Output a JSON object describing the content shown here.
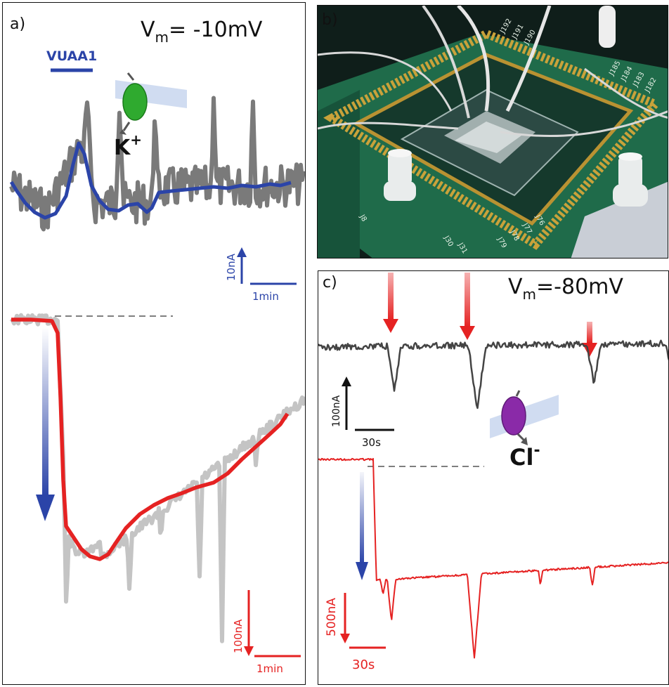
{
  "panel_a": {
    "label": "a)",
    "voltage_V": "V",
    "voltage_sub": "m",
    "voltage_value": "= -10mV",
    "drug_label": "VUAA1",
    "ion_symbol": "K",
    "ion_charge": "+",
    "scale_top": {
      "vertical": "10nA",
      "horizontal": "1min"
    },
    "scale_bottom": {
      "vertical": "100nA",
      "horizontal": "1min"
    }
  },
  "panel_b": {
    "label": "b)",
    "board_labels": [
      "J192",
      "J191",
      "J190",
      "J185",
      "J184",
      "J183",
      "J182",
      "J76",
      "J77",
      "J78",
      "J79",
      "J8",
      "J30",
      "J31"
    ]
  },
  "panel_c": {
    "label": "c)",
    "voltage_V": "V",
    "voltage_sub": "m",
    "voltage_value": "=-80mV",
    "ion_symbol": "Cl",
    "ion_charge": "-",
    "scale_top": {
      "vertical": "100nA",
      "horizontal": "30s"
    },
    "scale_bottom": {
      "vertical": "500nA",
      "horizontal": "30s"
    }
  },
  "colors": {
    "trace_gray": "#7a7a7a",
    "trace_light_gray": "#c4c4c4",
    "trace_blue": "#2b44a8",
    "trace_red": "#e52222",
    "trace_dark": "#444444",
    "k_channel": "#2faa2f",
    "cl_channel": "#8a2aa8",
    "membrane": "#c8d6ee",
    "pcb_green": "#1f6b4a",
    "pcb_gold": "#c9a23a"
  }
}
